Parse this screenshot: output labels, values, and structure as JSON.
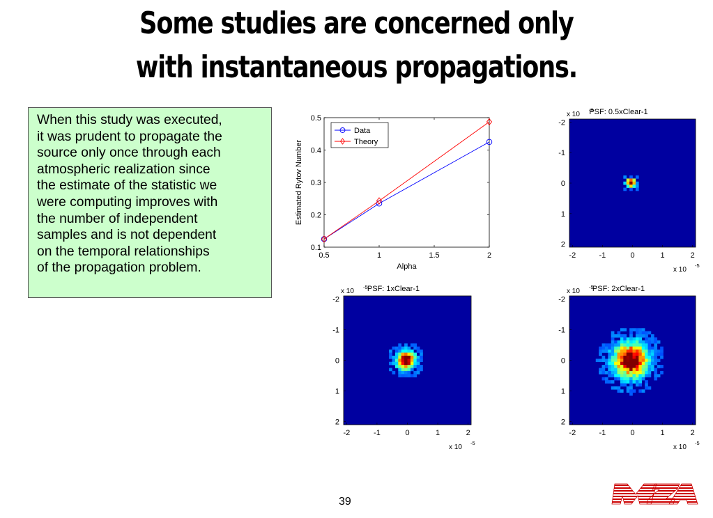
{
  "slide": {
    "title_line1": "Some studies are concerned only",
    "title_line2": "with instantaneous propagations.",
    "note": "When this study was executed,\nit was prudent to propagate the\nsource only once through each\natmospheric realization since\nthe estimate of the statistic we\nwere computing improves with\nthe number of independent\nsamples and is not dependent\non the temporal relationships\nof the propagation problem.",
    "page_number": "39",
    "logo_text": "MZA",
    "colors": {
      "note_bg": "#ccffcc",
      "psf_bg": "#0000a0",
      "data_series": "#0000ff",
      "theory_series": "#ff0000",
      "logo": "#cc0000"
    }
  },
  "chart_data": [
    {
      "type": "line",
      "title": "",
      "xlabel": "Alpha",
      "ylabel": "Estimated Rytov Number",
      "xlim": [
        0.5,
        2
      ],
      "ylim": [
        0.1,
        0.5
      ],
      "xticks": [
        "0.5",
        "1",
        "1.5",
        "2"
      ],
      "yticks": [
        "0.1",
        "0.2",
        "0.3",
        "0.4",
        "0.5"
      ],
      "legend_position": "top-left",
      "grid": false,
      "x": [
        0.5,
        1,
        2
      ],
      "series": [
        {
          "name": "Data",
          "marker": "circle",
          "color": "#0000ff",
          "values": [
            0.125,
            0.235,
            0.425
          ]
        },
        {
          "name": "Theory",
          "marker": "diamond",
          "color": "#ff0000",
          "values": [
            0.125,
            0.243,
            0.487
          ]
        }
      ]
    },
    {
      "type": "heatmap",
      "title": "PSF: 0.5xClear-1",
      "axis_multiplier": "x 10",
      "axis_exponent": "-5",
      "xticks": [
        "-2",
        "-1",
        "0",
        "1",
        "2"
      ],
      "yticks": [
        "-2",
        "-1",
        "0",
        "1",
        "2"
      ],
      "xlim": [
        -2.1,
        2.1
      ],
      "ylim": [
        -2.1,
        2.1
      ],
      "spot": {
        "center_x": -0.05,
        "center_y": 0.0,
        "radius": 0.2
      }
    },
    {
      "type": "heatmap",
      "title": "PSF: 1xClear-1",
      "axis_multiplier": "x 10",
      "axis_exponent": "-5",
      "xticks": [
        "-2",
        "-1",
        "0",
        "1",
        "2"
      ],
      "yticks": [
        "-2",
        "-1",
        "0",
        "1",
        "2"
      ],
      "xlim": [
        -2.1,
        2.1
      ],
      "ylim": [
        -2.1,
        2.1
      ],
      "spot": {
        "center_x": -0.05,
        "center_y": 0.0,
        "radius": 0.4
      }
    },
    {
      "type": "heatmap",
      "title": "PSF: 2xClear-1",
      "axis_multiplier": "x 10",
      "axis_exponent": "-5",
      "xticks": [
        "-2",
        "-1",
        "0",
        "1",
        "2"
      ],
      "yticks": [
        "-2",
        "-1",
        "0",
        "1",
        "2"
      ],
      "xlim": [
        -2.1,
        2.1
      ],
      "ylim": [
        -2.1,
        2.1
      ],
      "spot": {
        "center_x": -0.05,
        "center_y": 0.0,
        "radius": 0.75
      }
    }
  ]
}
